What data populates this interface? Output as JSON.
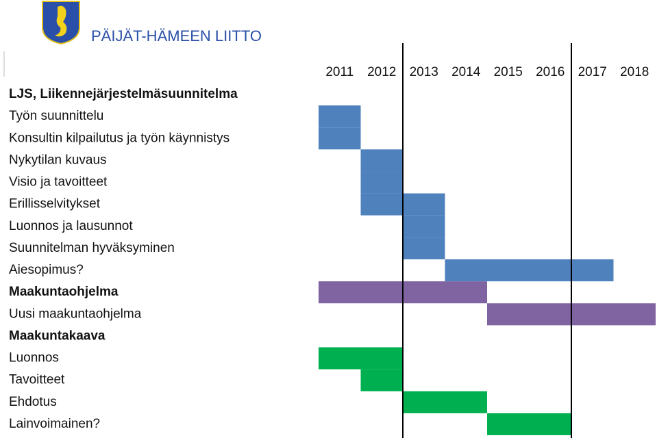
{
  "header": {
    "organization": "PÄIJÄT-HÄMEEN LIITTO"
  },
  "chart_data": {
    "type": "gantt",
    "xlim": [
      2011,
      2019
    ],
    "xticks": [
      2011,
      2012,
      2013,
      2014,
      2015,
      2016,
      2017,
      2018
    ],
    "vlines": [
      2013,
      2017
    ],
    "tasks": [
      {
        "name": "LJS, Liikennejärjestelmäsuunnitelma",
        "bold": true,
        "start": null,
        "end": null
      },
      {
        "name": "Työn suunnittelu",
        "color": "#4f81bd",
        "start": 2011,
        "end": 2012
      },
      {
        "name": "Konsultin kilpailutus ja työn käynnistys",
        "color": "#4f81bd",
        "start": 2011,
        "end": 2012
      },
      {
        "name": "Nykytilan kuvaus",
        "color": "#4f81bd",
        "start": 2012,
        "end": 2013
      },
      {
        "name": "Visio ja tavoitteet",
        "color": "#4f81bd",
        "start": 2012,
        "end": 2013
      },
      {
        "name": "Erillisselvitykset",
        "color": "#4f81bd",
        "start": 2012,
        "end": 2014
      },
      {
        "name": "Luonnos ja lausunnot",
        "color": "#4f81bd",
        "start": 2013,
        "end": 2014
      },
      {
        "name": "Suunnitelman hyväksyminen",
        "color": "#4f81bd",
        "start": 2013,
        "end": 2014
      },
      {
        "name": "Aiesopimus?",
        "color": "#4f81bd",
        "start": 2014,
        "end": 2018
      },
      {
        "name": "Maakuntaohjelma",
        "bold": true,
        "color": "#8064a2",
        "start": 2011,
        "end": 2015
      },
      {
        "name": "Uusi maakuntaohjelma",
        "color": "#8064a2",
        "start": 2015,
        "end": 2019
      },
      {
        "name": "Maakuntakaava",
        "bold": true,
        "start": null,
        "end": null
      },
      {
        "name": "Luonnos",
        "color": "#00b050",
        "start": 2011,
        "end": 2013
      },
      {
        "name": "Tavoitteet",
        "color": "#00b050",
        "start": 2012,
        "end": 2013
      },
      {
        "name": "Ehdotus",
        "color": "#00b050",
        "start": 2013,
        "end": 2015
      },
      {
        "name": "Lainvoimainen?",
        "color": "#00b050",
        "start": 2015,
        "end": 2017
      }
    ]
  }
}
